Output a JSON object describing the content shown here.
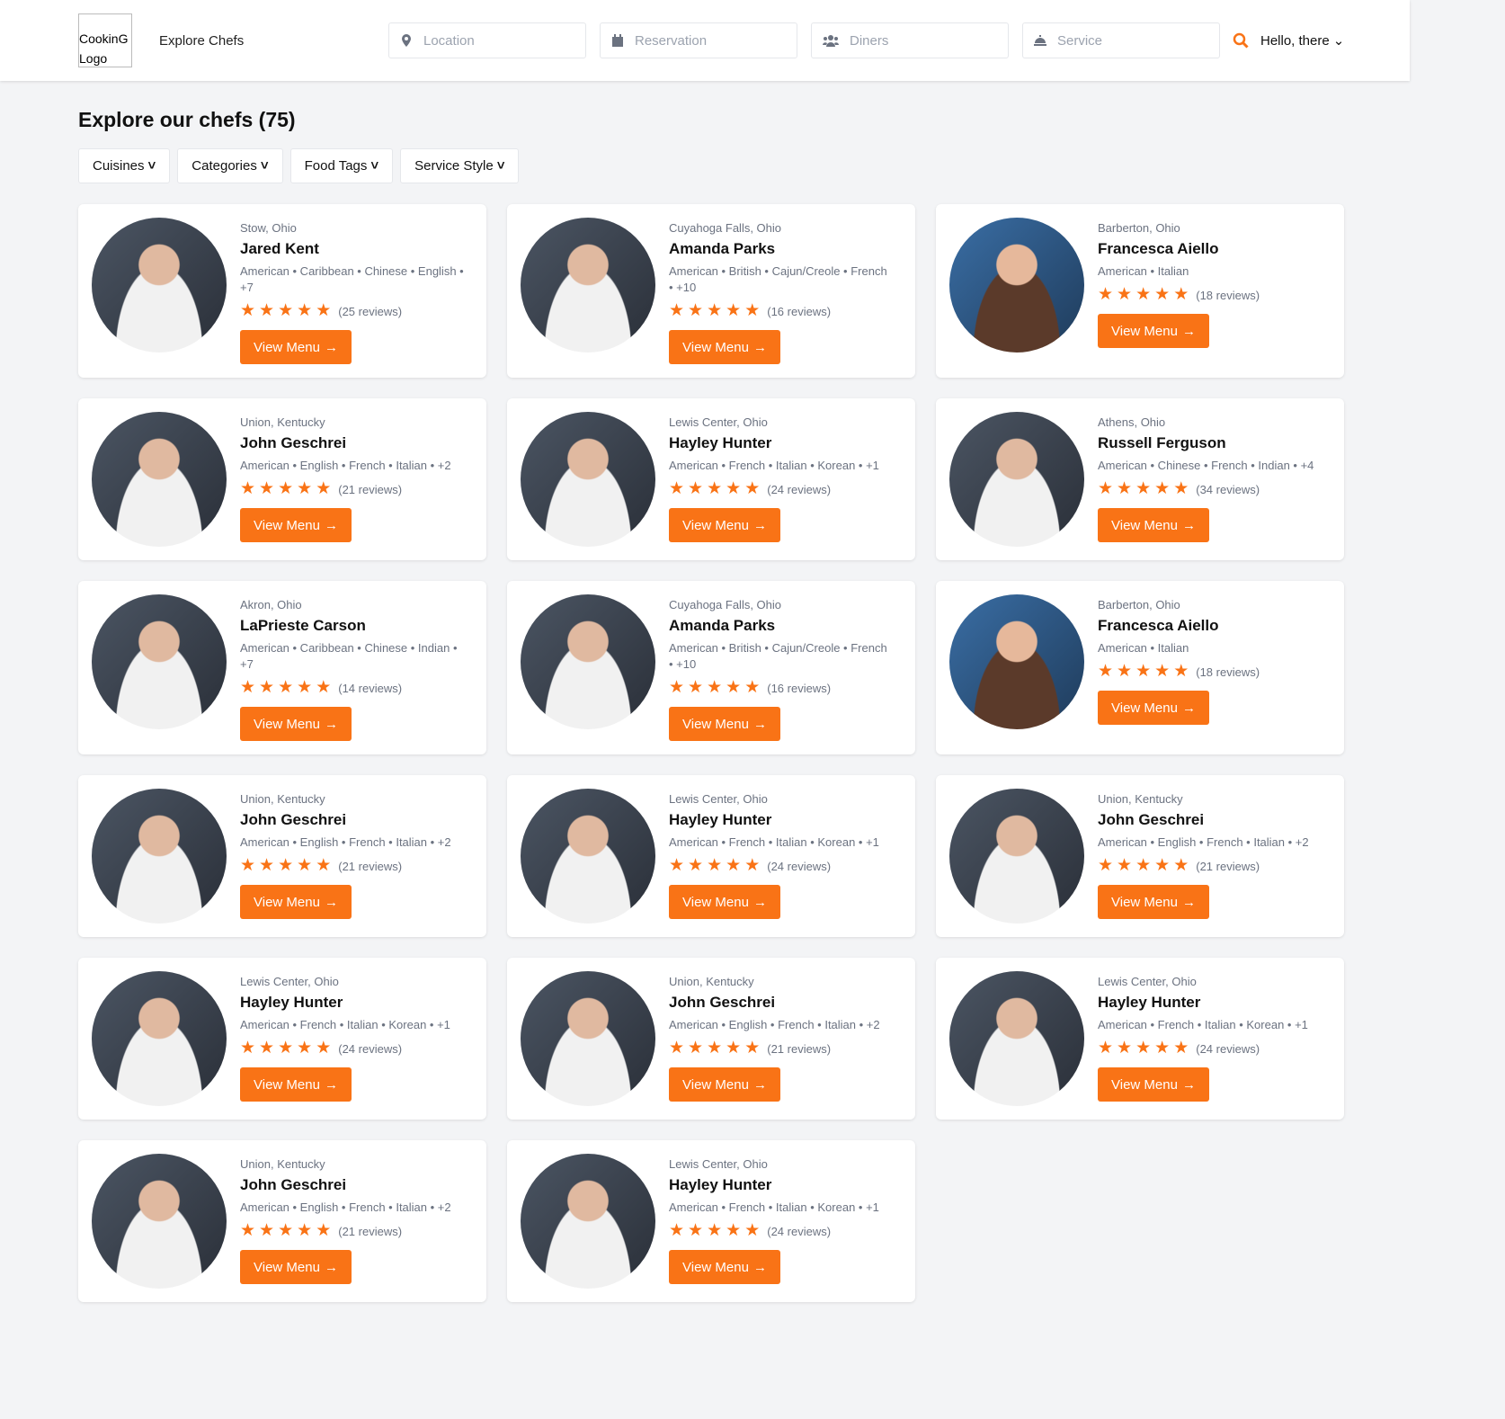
{
  "header": {
    "logo_alt": "CookinG Logo",
    "nav_title": "Explore Chefs",
    "fields": [
      {
        "placeholder": "Location",
        "icon": "map-pin-icon"
      },
      {
        "placeholder": "Reservation",
        "icon": "calendar-icon"
      },
      {
        "placeholder": "Diners",
        "icon": "users-icon"
      },
      {
        "placeholder": "Service",
        "icon": "cloche-icon"
      }
    ],
    "greeting": "Hello, there"
  },
  "page_title": "Explore our chefs (75)",
  "filters": [
    "Cuisines",
    "Categories",
    "Food Tags",
    "Service Style"
  ],
  "button_label": "View Menu",
  "colors": {
    "accent": "#f97316"
  },
  "chefs": [
    {
      "location": "Stow, Ohio",
      "name": "Jared Kent",
      "tags": "American • Caribbean • Chinese • English • +7",
      "reviews": "(25 reviews)",
      "rating": 5,
      "g": "m"
    },
    {
      "location": "Cuyahoga Falls, Ohio",
      "name": "Amanda Parks",
      "tags": "American • British • Cajun/Creole • French • +10",
      "reviews": "(16 reviews)",
      "rating": 5,
      "g": "m"
    },
    {
      "location": "Barberton, Ohio",
      "name": "Francesca Aiello",
      "tags": "American • Italian",
      "reviews": "(18 reviews)",
      "rating": 5,
      "g": "f"
    },
    {
      "location": "Union, Kentucky",
      "name": "John Geschrei",
      "tags": "American • English • French • Italian • +2",
      "reviews": "(21 reviews)",
      "rating": 5,
      "g": "m"
    },
    {
      "location": "Lewis Center, Ohio",
      "name": "Hayley Hunter",
      "tags": "American • French • Italian • Korean • +1",
      "reviews": "(24 reviews)",
      "rating": 5,
      "g": "m"
    },
    {
      "location": "Athens, Ohio",
      "name": "Russell Ferguson",
      "tags": "American • Chinese • French • Indian • +4",
      "reviews": "(34 reviews)",
      "rating": 5,
      "g": "m"
    },
    {
      "location": "Akron, Ohio",
      "name": "LaPrieste Carson",
      "tags": "American • Caribbean • Chinese • Indian • +7",
      "reviews": "(14 reviews)",
      "rating": 5,
      "g": "m"
    },
    {
      "location": "Cuyahoga Falls, Ohio",
      "name": "Amanda Parks",
      "tags": "American • British • Cajun/Creole • French • +10",
      "reviews": "(16 reviews)",
      "rating": 5,
      "g": "m"
    },
    {
      "location": "Barberton, Ohio",
      "name": "Francesca Aiello",
      "tags": "American • Italian",
      "reviews": "(18 reviews)",
      "rating": 5,
      "g": "f"
    },
    {
      "location": "Union, Kentucky",
      "name": "John Geschrei",
      "tags": "American • English • French • Italian • +2",
      "reviews": "(21 reviews)",
      "rating": 5,
      "g": "m"
    },
    {
      "location": "Lewis Center, Ohio",
      "name": "Hayley Hunter",
      "tags": "American • French • Italian • Korean • +1",
      "reviews": "(24 reviews)",
      "rating": 5,
      "g": "m"
    },
    {
      "location": "Union, Kentucky",
      "name": "John Geschrei",
      "tags": "American • English • French • Italian • +2",
      "reviews": "(21 reviews)",
      "rating": 5,
      "g": "m"
    },
    {
      "location": "Lewis Center, Ohio",
      "name": "Hayley Hunter",
      "tags": "American • French • Italian • Korean • +1",
      "reviews": "(24 reviews)",
      "rating": 5,
      "g": "m"
    },
    {
      "location": "Union, Kentucky",
      "name": "John Geschrei",
      "tags": "American • English • French • Italian • +2",
      "reviews": "(21 reviews)",
      "rating": 5,
      "g": "m"
    },
    {
      "location": "Lewis Center, Ohio",
      "name": "Hayley Hunter",
      "tags": "American • French • Italian • Korean • +1",
      "reviews": "(24 reviews)",
      "rating": 5,
      "g": "m"
    },
    {
      "location": "Union, Kentucky",
      "name": "John Geschrei",
      "tags": "American • English • French • Italian • +2",
      "reviews": "(21 reviews)",
      "rating": 5,
      "g": "m"
    },
    {
      "location": "Lewis Center, Ohio",
      "name": "Hayley Hunter",
      "tags": "American • French • Italian • Korean • +1",
      "reviews": "(24 reviews)",
      "rating": 5,
      "g": "m"
    }
  ]
}
